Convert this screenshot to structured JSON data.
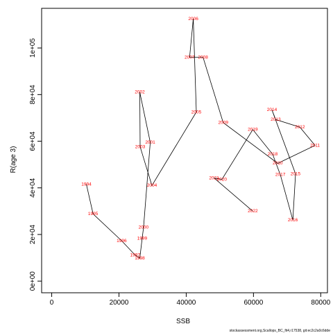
{
  "chart_data": {
    "type": "line",
    "xlabel": "SSB",
    "ylabel": "R(age 3)",
    "xlim": [
      -3000,
      82000
    ],
    "ylim": [
      -5000,
      117000
    ],
    "x_ticks": [
      0,
      20000,
      40000,
      60000,
      80000
    ],
    "x_tick_labels": [
      "0",
      "20000",
      "40000",
      "60000",
      "80000"
    ],
    "y_ticks": [
      0,
      20000,
      40000,
      60000,
      80000,
      100000
    ],
    "y_tick_labels": [
      "0e+00",
      "2e+04",
      "4e+04",
      "6e+04",
      "8e+04",
      "1e+05"
    ],
    "grid": false,
    "line_color": "#000000",
    "label_color": "#ff0000",
    "points": [
      {
        "year": "1994",
        "ssb": 10300,
        "r": 41500
      },
      {
        "year": "1995",
        "ssb": 12300,
        "r": 28800
      },
      {
        "year": "1996",
        "ssb": 20800,
        "r": 17300
      },
      {
        "year": "1997",
        "ssb": 24800,
        "r": 11200
      },
      {
        "year": "1998",
        "ssb": 26200,
        "r": 9800
      },
      {
        "year": "1999",
        "ssb": 26900,
        "r": 18300
      },
      {
        "year": "2000",
        "ssb": 27300,
        "r": 23000
      },
      {
        "year": "2001",
        "ssb": 29300,
        "r": 59500
      },
      {
        "year": "2002",
        "ssb": 26200,
        "r": 81000
      },
      {
        "year": "2003",
        "ssb": 26300,
        "r": 57600
      },
      {
        "year": "2004",
        "ssb": 29800,
        "r": 41000
      },
      {
        "year": "2005",
        "ssb": 43000,
        "r": 72500
      },
      {
        "year": "2006",
        "ssb": 42100,
        "r": 112500
      },
      {
        "year": "2007",
        "ssb": 41000,
        "r": 96000
      },
      {
        "year": "2008",
        "ssb": 45000,
        "r": 96000
      },
      {
        "year": "2009",
        "ssb": 51000,
        "r": 68000
      },
      {
        "year": "2010",
        "ssb": 67200,
        "r": 50500
      },
      {
        "year": "2011",
        "ssb": 78300,
        "r": 58200
      },
      {
        "year": "2012",
        "ssb": 73800,
        "r": 66000
      },
      {
        "year": "2013",
        "ssb": 66600,
        "r": 69300
      },
      {
        "year": "2014",
        "ssb": 65500,
        "r": 73400
      },
      {
        "year": "2015",
        "ssb": 72500,
        "r": 46000
      },
      {
        "year": "2016",
        "ssb": 71700,
        "r": 26200
      },
      {
        "year": "2017",
        "ssb": 68000,
        "r": 45600
      },
      {
        "year": "2018",
        "ssb": 65700,
        "r": 54400
      },
      {
        "year": "2019",
        "ssb": 59800,
        "r": 65000
      },
      {
        "year": "2020",
        "ssb": 50600,
        "r": 43600
      },
      {
        "year": "2021",
        "ssb": 48300,
        "r": 44200
      },
      {
        "year": "2022",
        "ssb": 59800,
        "r": 30000
      }
    ]
  },
  "footer": "stockassessment.org,Scallops_BC_fit4,r17538, git:ec2c2a0c6dde"
}
